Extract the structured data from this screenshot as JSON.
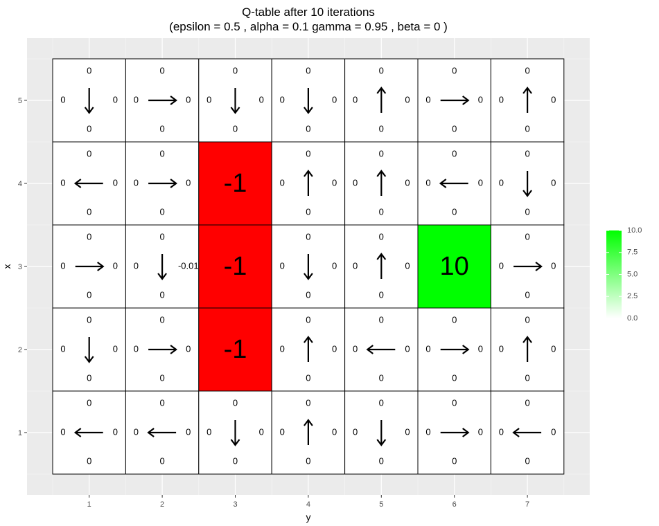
{
  "chart_data": {
    "type": "heatmap",
    "title_line1": "Q-table after  10  iterations",
    "title_line2": "(epsilon =  0.5 , alpha =  0.1 gamma =  0.95 , beta =  0 )",
    "xlabel": "y",
    "ylabel": "x",
    "x_ticks": [
      1,
      2,
      3,
      4,
      5,
      6,
      7
    ],
    "y_ticks": [
      1,
      2,
      3,
      4,
      5
    ],
    "xlim": [
      0.5,
      7.5
    ],
    "ylim": [
      0.5,
      5.5
    ],
    "grid": true,
    "legend": {
      "position": "right",
      "ticks": [
        "0.0",
        "2.5",
        "5.0",
        "7.5",
        "10.0"
      ],
      "min": 0,
      "max": 10,
      "low_color": "#ffffff",
      "high_color": "#00ff00"
    },
    "colors": {
      "panel_background": "#ebebeb",
      "negative_cell": "#ff0000",
      "positive_cell": "#00ff00",
      "neutral_cell": "#ffffff"
    },
    "cells": [
      {
        "x": 5,
        "y": 1,
        "top": "0",
        "bottom": "0",
        "left": "0",
        "right": "0",
        "arrow": "down"
      },
      {
        "x": 5,
        "y": 2,
        "top": "0",
        "bottom": "0",
        "left": "0",
        "right": "0",
        "arrow": "right"
      },
      {
        "x": 5,
        "y": 3,
        "top": "0",
        "bottom": "0",
        "left": "0",
        "right": "0",
        "arrow": "down"
      },
      {
        "x": 5,
        "y": 4,
        "top": "0",
        "bottom": "0",
        "left": "0",
        "right": "0",
        "arrow": "down"
      },
      {
        "x": 5,
        "y": 5,
        "top": "0",
        "bottom": "0",
        "left": "0",
        "right": "0",
        "arrow": "up"
      },
      {
        "x": 5,
        "y": 6,
        "top": "0",
        "bottom": "0",
        "left": "0",
        "right": "0",
        "arrow": "right"
      },
      {
        "x": 5,
        "y": 7,
        "top": "0",
        "bottom": "0",
        "left": "0",
        "right": "0",
        "arrow": "up"
      },
      {
        "x": 4,
        "y": 1,
        "top": "0",
        "bottom": "0",
        "left": "0",
        "right": "0",
        "arrow": "left"
      },
      {
        "x": 4,
        "y": 2,
        "top": "0",
        "bottom": "0",
        "left": "0",
        "right": "0",
        "arrow": "right"
      },
      {
        "x": 4,
        "y": 3,
        "reward": "-1"
      },
      {
        "x": 4,
        "y": 4,
        "top": "0",
        "bottom": "0",
        "left": "0",
        "right": "0",
        "arrow": "up"
      },
      {
        "x": 4,
        "y": 5,
        "top": "0",
        "bottom": "0",
        "left": "0",
        "right": "0",
        "arrow": "up"
      },
      {
        "x": 4,
        "y": 6,
        "top": "0",
        "bottom": "0",
        "left": "0",
        "right": "0",
        "arrow": "left"
      },
      {
        "x": 4,
        "y": 7,
        "top": "0",
        "bottom": "0",
        "left": "0",
        "right": "0",
        "arrow": "down"
      },
      {
        "x": 3,
        "y": 1,
        "top": "0",
        "bottom": "0",
        "left": "0",
        "right": "0",
        "arrow": "right"
      },
      {
        "x": 3,
        "y": 2,
        "top": "0",
        "bottom": "0",
        "left": "0",
        "right": "-0.01",
        "arrow": "down"
      },
      {
        "x": 3,
        "y": 3,
        "reward": "-1"
      },
      {
        "x": 3,
        "y": 4,
        "top": "0",
        "bottom": "0",
        "left": "0",
        "right": "0",
        "arrow": "down"
      },
      {
        "x": 3,
        "y": 5,
        "top": "0",
        "bottom": "0",
        "left": "0",
        "right": "0",
        "arrow": "up"
      },
      {
        "x": 3,
        "y": 6,
        "reward": "10"
      },
      {
        "x": 3,
        "y": 7,
        "top": "0",
        "bottom": "0",
        "left": "0",
        "right": "0",
        "arrow": "right"
      },
      {
        "x": 2,
        "y": 1,
        "top": "0",
        "bottom": "0",
        "left": "0",
        "right": "0",
        "arrow": "down"
      },
      {
        "x": 2,
        "y": 2,
        "top": "0",
        "bottom": "0",
        "left": "0",
        "right": "0",
        "arrow": "right"
      },
      {
        "x": 2,
        "y": 3,
        "reward": "-1"
      },
      {
        "x": 2,
        "y": 4,
        "top": "0",
        "bottom": "0",
        "left": "0",
        "right": "0",
        "arrow": "up"
      },
      {
        "x": 2,
        "y": 5,
        "top": "0",
        "bottom": "0",
        "left": "0",
        "right": "0",
        "arrow": "left"
      },
      {
        "x": 2,
        "y": 6,
        "top": "0",
        "bottom": "0",
        "left": "0",
        "right": "0",
        "arrow": "right"
      },
      {
        "x": 2,
        "y": 7,
        "top": "0",
        "bottom": "0",
        "left": "0",
        "right": "0",
        "arrow": "up"
      },
      {
        "x": 1,
        "y": 1,
        "top": "0",
        "bottom": "0",
        "left": "0",
        "right": "0",
        "arrow": "left"
      },
      {
        "x": 1,
        "y": 2,
        "top": "0",
        "bottom": "0",
        "left": "0",
        "right": "0",
        "arrow": "left"
      },
      {
        "x": 1,
        "y": 3,
        "top": "0",
        "bottom": "0",
        "left": "0",
        "right": "0",
        "arrow": "down"
      },
      {
        "x": 1,
        "y": 4,
        "top": "0",
        "bottom": "0",
        "left": "0",
        "right": "0",
        "arrow": "up"
      },
      {
        "x": 1,
        "y": 5,
        "top": "0",
        "bottom": "0",
        "left": "0",
        "right": "0",
        "arrow": "down"
      },
      {
        "x": 1,
        "y": 6,
        "top": "0",
        "bottom": "0",
        "left": "0",
        "right": "0",
        "arrow": "right"
      },
      {
        "x": 1,
        "y": 7,
        "top": "0",
        "bottom": "0",
        "left": "0",
        "right": "0",
        "arrow": "left"
      }
    ]
  }
}
